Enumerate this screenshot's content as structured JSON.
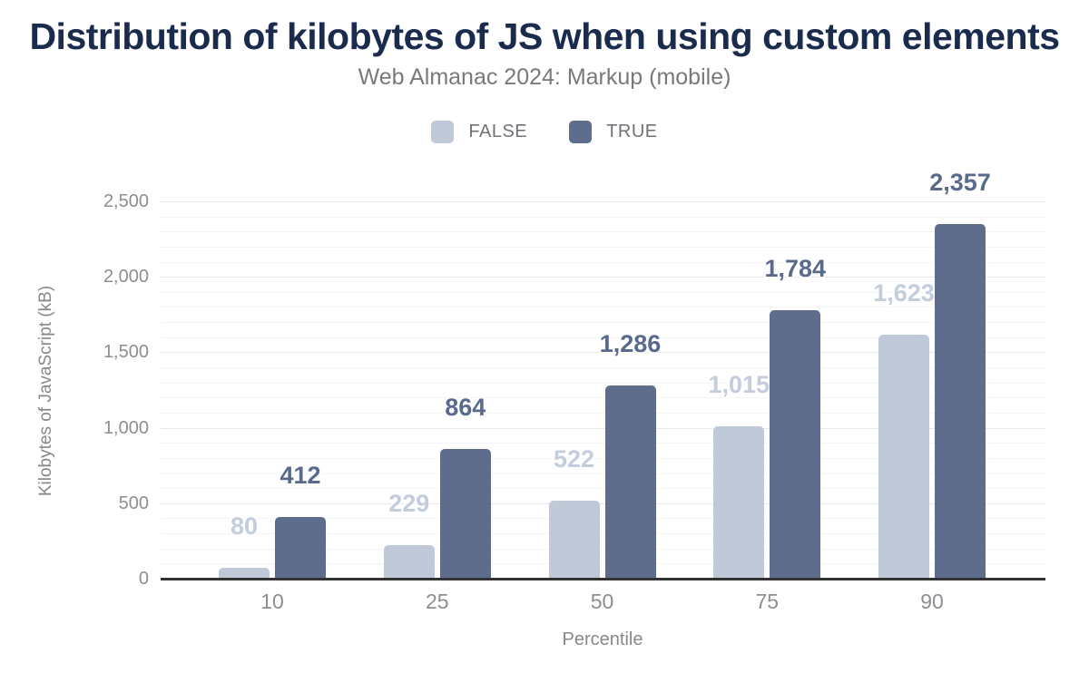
{
  "header": {
    "title": "Distribution of kilobytes of JS when using custom elements",
    "subtitle": "Web Almanac 2024: Markup (mobile)"
  },
  "colors": {
    "title": "#1b2b4e",
    "subtitle_text": "#77797c",
    "axis_text": "#8b8e92",
    "axis_line": "#333333",
    "false_series": "#bfc9d8",
    "true_series": "#5e6d8b"
  },
  "chart_data": {
    "type": "bar",
    "title": "Distribution of kilobytes of JS when using custom elements",
    "subtitle": "Web Almanac 2024: Markup (mobile)",
    "categories": [
      "10",
      "25",
      "50",
      "75",
      "90"
    ],
    "series": [
      {
        "name": "FALSE",
        "color": "#bfc9d8",
        "label_color": "#c3cdde",
        "values": [
          80,
          229,
          522,
          1015,
          1623
        ],
        "value_labels": [
          "80",
          "229",
          "522",
          "1,015",
          "1,623"
        ]
      },
      {
        "name": "TRUE",
        "color": "#5e6d8b",
        "label_color": "#596a8d",
        "values": [
          412,
          864,
          1286,
          1784,
          2357
        ],
        "value_labels": [
          "412",
          "864",
          "1,286",
          "1,784",
          "2,357"
        ]
      }
    ],
    "xlabel": "Percentile",
    "ylabel": "Kilobytes of JavaScript (kB)",
    "ylim": [
      0,
      2500
    ],
    "yticks": [
      {
        "value": 0,
        "label": "0"
      },
      {
        "value": 500,
        "label": "500"
      },
      {
        "value": 1000,
        "label": "1,000"
      },
      {
        "value": 1500,
        "label": "1,500"
      },
      {
        "value": 2000,
        "label": "2,000"
      },
      {
        "value": 2500,
        "label": "2,500"
      }
    ],
    "minor_grid_step": 100,
    "major_grid_step": 500,
    "grid": true,
    "legend_position": "top"
  }
}
